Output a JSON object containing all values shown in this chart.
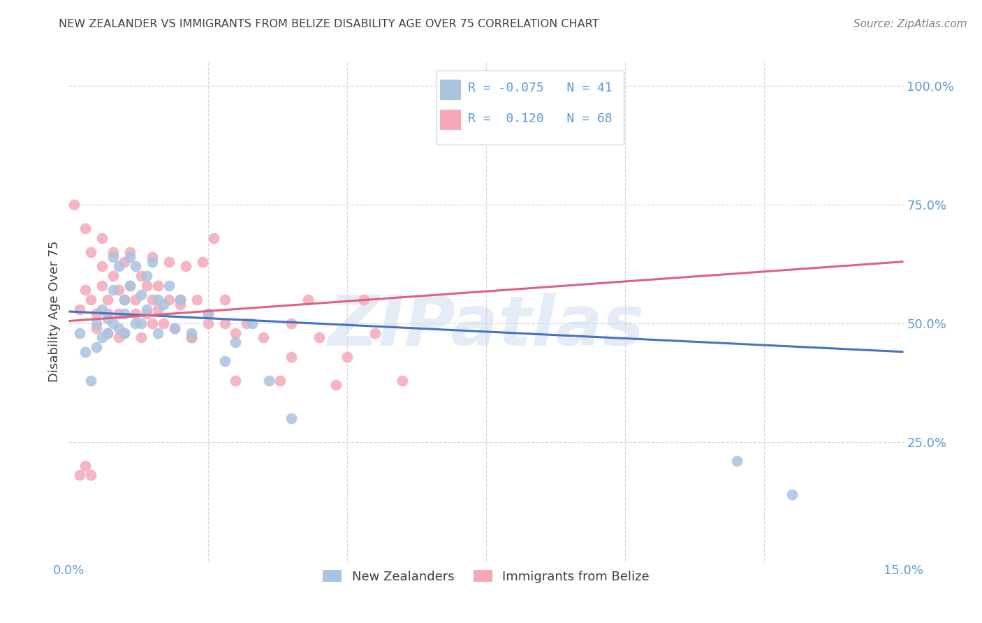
{
  "title": "NEW ZEALANDER VS IMMIGRANTS FROM BELIZE DISABILITY AGE OVER 75 CORRELATION CHART",
  "source": "Source: ZipAtlas.com",
  "ylabel": "Disability Age Over 75",
  "x_min": 0.0,
  "x_max": 0.15,
  "y_min": 0.0,
  "y_max": 1.05,
  "legend_label1": "New Zealanders",
  "legend_label2": "Immigrants from Belize",
  "R1": "-0.075",
  "N1": "41",
  "R2": "0.120",
  "N2": "68",
  "color_nz": "#a8c4e0",
  "color_nz_edge": "#a8c4e0",
  "color_belize": "#f4a8b8",
  "color_belize_edge": "#f4a8b8",
  "color_line_nz": "#4472c4",
  "color_line_belize": "#e06080",
  "color_axis": "#5b9bd5",
  "color_title": "#404040",
  "color_source": "#808080",
  "color_grid": "#d8d8d8",
  "color_watermark": "#c5d8ee",
  "watermark": "ZIPatlas",
  "nz_x": [
    0.002,
    0.003,
    0.004,
    0.005,
    0.005,
    0.006,
    0.006,
    0.007,
    0.007,
    0.008,
    0.008,
    0.008,
    0.009,
    0.009,
    0.01,
    0.01,
    0.01,
    0.011,
    0.011,
    0.012,
    0.012,
    0.013,
    0.013,
    0.014,
    0.014,
    0.015,
    0.016,
    0.016,
    0.017,
    0.018,
    0.019,
    0.02,
    0.022,
    0.025,
    0.028,
    0.03,
    0.033,
    0.036,
    0.04,
    0.12,
    0.13
  ],
  "nz_y": [
    0.48,
    0.44,
    0.38,
    0.5,
    0.45,
    0.53,
    0.47,
    0.51,
    0.48,
    0.64,
    0.57,
    0.5,
    0.62,
    0.49,
    0.55,
    0.48,
    0.52,
    0.64,
    0.58,
    0.62,
    0.5,
    0.56,
    0.5,
    0.6,
    0.53,
    0.63,
    0.55,
    0.48,
    0.54,
    0.58,
    0.49,
    0.55,
    0.48,
    0.52,
    0.42,
    0.46,
    0.5,
    0.38,
    0.3,
    0.21,
    0.14
  ],
  "belize_x": [
    0.001,
    0.002,
    0.003,
    0.003,
    0.004,
    0.004,
    0.005,
    0.005,
    0.006,
    0.006,
    0.006,
    0.007,
    0.007,
    0.007,
    0.008,
    0.008,
    0.009,
    0.009,
    0.009,
    0.01,
    0.01,
    0.01,
    0.011,
    0.011,
    0.012,
    0.012,
    0.013,
    0.013,
    0.014,
    0.014,
    0.015,
    0.015,
    0.016,
    0.016,
    0.017,
    0.018,
    0.019,
    0.02,
    0.021,
    0.022,
    0.023,
    0.024,
    0.025,
    0.026,
    0.028,
    0.03,
    0.032,
    0.035,
    0.038,
    0.04,
    0.043,
    0.048,
    0.053,
    0.055,
    0.06,
    0.04,
    0.045,
    0.05,
    0.018,
    0.02,
    0.015,
    0.022,
    0.025,
    0.028,
    0.03,
    0.002,
    0.003,
    0.004
  ],
  "belize_y": [
    0.75,
    0.53,
    0.7,
    0.57,
    0.55,
    0.65,
    0.52,
    0.49,
    0.68,
    0.62,
    0.58,
    0.52,
    0.55,
    0.48,
    0.65,
    0.6,
    0.52,
    0.57,
    0.47,
    0.63,
    0.55,
    0.48,
    0.65,
    0.58,
    0.55,
    0.52,
    0.6,
    0.47,
    0.58,
    0.52,
    0.64,
    0.55,
    0.58,
    0.53,
    0.5,
    0.55,
    0.49,
    0.54,
    0.62,
    0.47,
    0.55,
    0.63,
    0.5,
    0.68,
    0.5,
    0.48,
    0.5,
    0.47,
    0.38,
    0.43,
    0.55,
    0.37,
    0.55,
    0.48,
    0.38,
    0.5,
    0.47,
    0.43,
    0.63,
    0.55,
    0.5,
    0.47,
    0.52,
    0.55,
    0.38,
    0.18,
    0.2,
    0.18
  ],
  "nz_line_x": [
    0.0,
    0.15
  ],
  "nz_line_y": [
    0.525,
    0.44
  ],
  "belize_line_x": [
    0.0,
    0.15
  ],
  "belize_line_y": [
    0.505,
    0.63
  ]
}
